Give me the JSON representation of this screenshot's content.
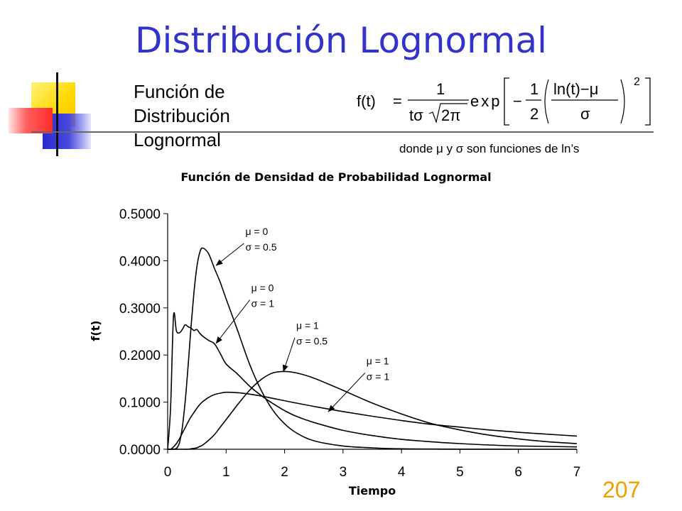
{
  "slide": {
    "title": "Distribución Lognormal",
    "subtitle_lines": [
      "Función de",
      "Distribución",
      "Lognormal"
    ],
    "formula": {
      "lhs": "f(t)",
      "eq": "=",
      "frac1_num": "1",
      "frac1_den_t": "tσ",
      "frac1_den_root": "2π",
      "exp": "exp",
      "minus": "−",
      "half_num": "1",
      "half_den": "2",
      "inner_num": "ln(t)−μ",
      "inner_den": "σ",
      "power": "2"
    },
    "donde_text": "donde  μ  y  σ  son funciones de ln’s",
    "page_number": "207",
    "accent_color": "#3333cc",
    "page_number_color": "#f0a000"
  },
  "chart_data": {
    "type": "line",
    "title": "Función de Densidad de Probabilidad Lognormal",
    "xlabel": "Tiempo",
    "ylabel": "f(t)",
    "xlim": [
      0,
      7
    ],
    "ylim": [
      0,
      0.5
    ],
    "x_ticks": [
      "0",
      "1",
      "2",
      "3",
      "4",
      "5",
      "6",
      "7"
    ],
    "y_ticks": [
      "0.0000",
      "0.1000",
      "0.2000",
      "0.3000",
      "0.4000",
      "0.5000"
    ],
    "x": [
      0.05,
      0.1,
      0.15,
      0.2,
      0.25,
      0.3,
      0.35,
      0.4,
      0.45,
      0.5,
      0.55,
      0.6,
      0.7,
      0.8,
      0.9,
      1.0,
      1.2,
      1.4,
      1.6,
      1.8,
      2.0,
      2.2,
      2.5,
      3.0,
      3.5,
      4.0,
      4.5,
      5.0,
      5.5,
      6.0,
      6.5,
      7.0
    ],
    "series": [
      {
        "params": {
          "mu": "0",
          "sigma": "0.5"
        },
        "values": [
          0.0,
          0.0,
          0.002,
          0.013,
          0.046,
          0.102,
          0.177,
          0.26,
          0.333,
          0.387,
          0.418,
          0.427,
          0.415,
          0.384,
          0.354,
          0.319,
          0.251,
          0.181,
          0.125,
          0.083,
          0.054,
          0.035,
          0.018,
          0.007,
          0.003,
          0.001,
          0.0005,
          0.0002,
          0.0001,
          0.0,
          0.0,
          0.0
        ]
      },
      {
        "params": {
          "mu": "0",
          "sigma": "1"
        },
        "values": [
          0.088,
          0.282,
          0.251,
          0.247,
          0.254,
          0.264,
          0.26,
          0.257,
          0.252,
          0.254,
          0.246,
          0.24,
          0.231,
          0.224,
          0.203,
          0.181,
          0.159,
          0.134,
          0.114,
          0.097,
          0.082,
          0.07,
          0.057,
          0.04,
          0.029,
          0.021,
          0.016,
          0.012,
          0.009,
          0.007,
          0.006,
          0.005
        ]
      },
      {
        "params": {
          "mu": "1",
          "sigma": "0.5"
        },
        "values": [
          0.0,
          0.0,
          0.0,
          0.0,
          0.0,
          0.0,
          0.0,
          0.001,
          0.002,
          0.003,
          0.006,
          0.009,
          0.019,
          0.031,
          0.047,
          0.063,
          0.095,
          0.125,
          0.148,
          0.162,
          0.165,
          0.162,
          0.151,
          0.125,
          0.098,
          0.075,
          0.055,
          0.041,
          0.03,
          0.022,
          0.016,
          0.012
        ]
      },
      {
        "params": {
          "mu": "1",
          "sigma": "1"
        },
        "values": [
          0.0,
          0.005,
          0.012,
          0.022,
          0.034,
          0.046,
          0.058,
          0.069,
          0.078,
          0.087,
          0.095,
          0.101,
          0.11,
          0.116,
          0.119,
          0.121,
          0.12,
          0.117,
          0.113,
          0.108,
          0.103,
          0.098,
          0.091,
          0.08,
          0.07,
          0.061,
          0.053,
          0.047,
          0.041,
          0.036,
          0.032,
          0.028
        ]
      }
    ],
    "annotations": [
      {
        "line1": "μ = 0",
        "line2": "σ = 0.5",
        "label_x": 1.33,
        "label_y": 0.455,
        "arrow_to_x": 0.83,
        "arrow_to_y": 0.39
      },
      {
        "line1": "μ = 0",
        "line2": "σ = 1",
        "label_x": 1.43,
        "label_y": 0.335,
        "arrow_to_x": 0.83,
        "arrow_to_y": 0.225
      },
      {
        "line1": "μ = 1",
        "line2": "σ = 0.5",
        "label_x": 2.2,
        "label_y": 0.255,
        "arrow_to_x": 1.98,
        "arrow_to_y": 0.165
      },
      {
        "line1": "μ = 1",
        "line2": "σ = 1",
        "label_x": 3.4,
        "label_y": 0.18,
        "arrow_to_x": 2.75,
        "arrow_to_y": 0.08
      }
    ],
    "grid": false,
    "line_color": "#000000"
  }
}
